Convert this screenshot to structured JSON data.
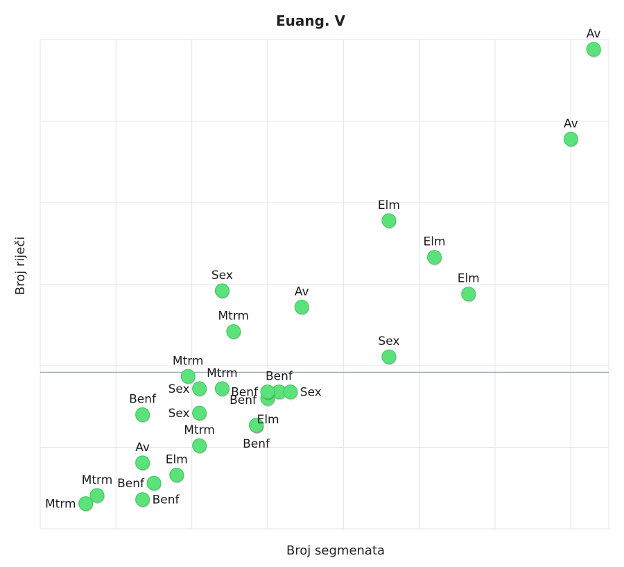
{
  "chart_data": {
    "type": "scatter",
    "title": "Euang. V",
    "xlabel": "Broj segmenata",
    "ylabel": "Broj riječi",
    "tick_labels_shown": false,
    "grid": true,
    "xlim": [
      0,
      7.5
    ],
    "ylim": [
      0,
      6
    ],
    "reference_line": {
      "axis": "y",
      "value": 1.92
    },
    "point_color": "#5be27a",
    "point_stroke": "#3cc45c",
    "points": [
      {
        "label": "Av",
        "x": 7.3,
        "y": 5.88,
        "label_pos": "above"
      },
      {
        "label": "Av",
        "x": 7.0,
        "y": 4.78,
        "label_pos": "above"
      },
      {
        "label": "Elm",
        "x": 4.6,
        "y": 3.78,
        "label_pos": "above"
      },
      {
        "label": "Elm",
        "x": 5.2,
        "y": 3.33,
        "label_pos": "above"
      },
      {
        "label": "Elm",
        "x": 5.65,
        "y": 2.88,
        "label_pos": "above"
      },
      {
        "label": "Sex",
        "x": 2.4,
        "y": 2.92,
        "label_pos": "above"
      },
      {
        "label": "Av",
        "x": 3.45,
        "y": 2.72,
        "label_pos": "above"
      },
      {
        "label": "Mtrm",
        "x": 2.55,
        "y": 2.42,
        "label_pos": "above"
      },
      {
        "label": "Sex",
        "x": 4.6,
        "y": 2.11,
        "label_pos": "above"
      },
      {
        "label": "Mtrm",
        "x": 1.95,
        "y": 1.87,
        "label_pos": "above"
      },
      {
        "label": "Sex",
        "x": 2.1,
        "y": 1.72,
        "label_pos": "left"
      },
      {
        "label": "Mtrm",
        "x": 2.4,
        "y": 1.72,
        "label_pos": "above"
      },
      {
        "label": "Benf",
        "x": 3.15,
        "y": 1.68,
        "label_pos": "above"
      },
      {
        "label": "Benf",
        "x": 3.0,
        "y": 1.6,
        "label_pos": "below-right"
      },
      {
        "label": "Benf",
        "x": 3.0,
        "y": 1.68,
        "label_pos": "left"
      },
      {
        "label": "Sex",
        "x": 3.3,
        "y": 1.68,
        "label_pos": "right"
      },
      {
        "label": "Benf",
        "x": 1.35,
        "y": 1.4,
        "label_pos": "above"
      },
      {
        "label": "Sex",
        "x": 2.1,
        "y": 1.42,
        "label_pos": "left"
      },
      {
        "label": "Elm",
        "x": 2.85,
        "y": 1.27,
        "label_pos": "above-right"
      },
      {
        "label": "Benf",
        "x": 2.85,
        "y": 1.27,
        "label_pos": "below"
      },
      {
        "label": "Mtrm",
        "x": 2.1,
        "y": 1.02,
        "label_pos": "above"
      },
      {
        "label": "Av",
        "x": 1.35,
        "y": 0.81,
        "label_pos": "above"
      },
      {
        "label": "Elm",
        "x": 1.8,
        "y": 0.66,
        "label_pos": "above"
      },
      {
        "label": "Benf",
        "x": 1.5,
        "y": 0.56,
        "label_pos": "left"
      },
      {
        "label": "Benf",
        "x": 1.35,
        "y": 0.36,
        "label_pos": "right"
      },
      {
        "label": "Mtrm",
        "x": 0.75,
        "y": 0.41,
        "label_pos": "above"
      },
      {
        "label": "Mtrm",
        "x": 0.6,
        "y": 0.31,
        "label_pos": "left"
      }
    ]
  }
}
